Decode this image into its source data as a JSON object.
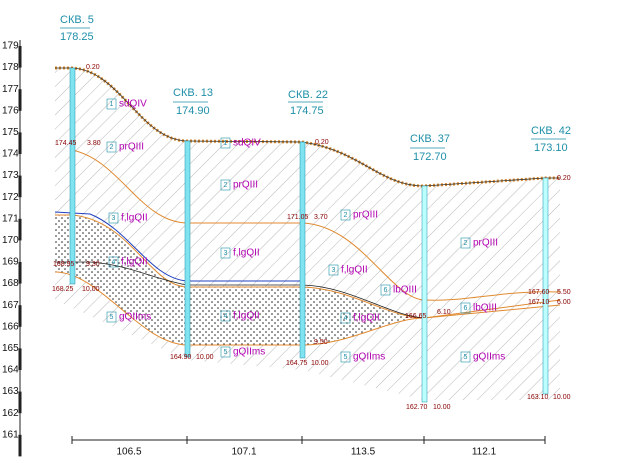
{
  "scale": {
    "labels": [
      179,
      178,
      177,
      176,
      175,
      174,
      173,
      172,
      171,
      170,
      169,
      168,
      167,
      166,
      165,
      164,
      163,
      162,
      161
    ]
  },
  "wells": [
    {
      "name": "СКВ. 5",
      "elevation": "178.25",
      "bottom": "168.25",
      "depth": "10.00"
    },
    {
      "name": "СКВ. 13",
      "elevation": "174.90",
      "bottom": "164.90",
      "depth": "10.00"
    },
    {
      "name": "СКВ. 22",
      "elevation": "174.75",
      "bottom": "164.75",
      "depth": "10.00"
    },
    {
      "name": "СКВ. 37",
      "elevation": "172.70",
      "bottom": "162.70",
      "depth": "10.00"
    },
    {
      "name": "СКВ. 42",
      "elevation": "173.10",
      "bottom": "163.10",
      "depth": "10.00"
    }
  ],
  "distances": [
    "106.5",
    "107.1",
    "113.5",
    "112.1"
  ],
  "layers": [
    {
      "num": "1",
      "label": "sdQIV"
    },
    {
      "num": "2",
      "label": "prQIII"
    },
    {
      "num": "3",
      "label": "f,lgQII"
    },
    {
      "num": "4",
      "label": "f,lgQII"
    },
    {
      "num": "5",
      "label": "gQIIms"
    },
    {
      "num": "2",
      "label": "prQIII"
    },
    {
      "num": "3",
      "label": "f,lgQII"
    },
    {
      "num": "4",
      "label": "f,lgQII"
    },
    {
      "num": "5",
      "label": "gQIIms"
    },
    {
      "num": "1",
      "label": "sdQIV"
    },
    {
      "num": "2",
      "label": "prQIII"
    },
    {
      "num": "3",
      "label": "f,lgQII"
    },
    {
      "num": "4",
      "label": "f,lgQII"
    },
    {
      "num": "5",
      "label": "gQIIms"
    },
    {
      "num": "6",
      "label": "lbQIII"
    },
    {
      "num": "2",
      "label": "prQIII"
    },
    {
      "num": "6",
      "label": "lbQIII"
    },
    {
      "num": "5",
      "label": "gQIIms"
    }
  ],
  "annotations": [
    "0.20",
    "174.45",
    "3.80",
    "168.95",
    "9.30",
    "171.05",
    "3.70",
    "0.20",
    "166.65",
    "6.10",
    "167.60",
    "5.50",
    "167.10",
    "6.00",
    "0.20",
    "9.50"
  ]
}
